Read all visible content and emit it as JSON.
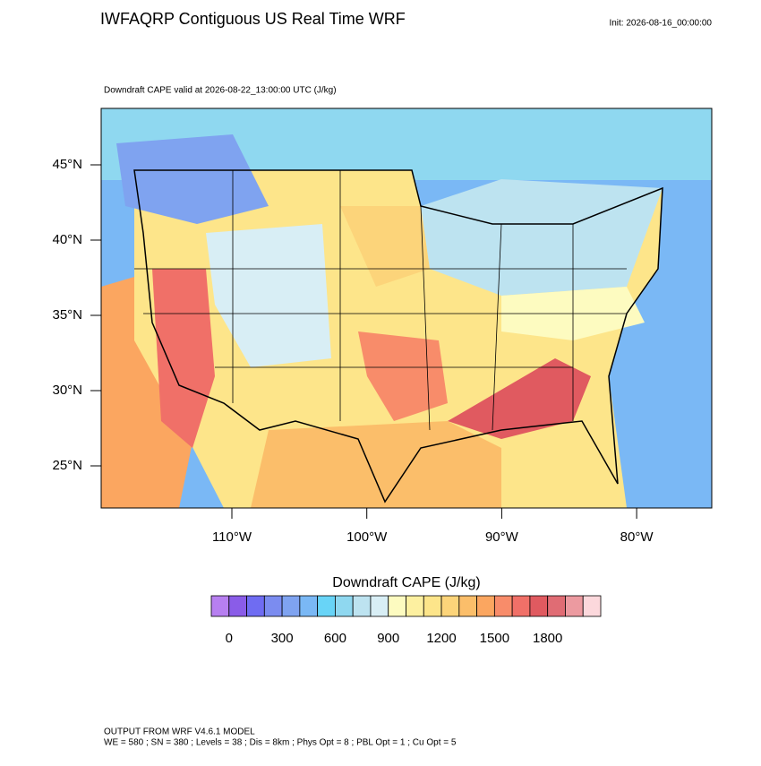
{
  "header": {
    "title": "IWFAQRP Contiguous US Real Time WRF",
    "init": "Init: 2026-08-16_00:00:00"
  },
  "plot": {
    "subtitle": "Downdraft CAPE valid at 2026-08-22_13:00:00 UTC   (J/kg)",
    "lat_labels": [
      "45°N",
      "40°N",
      "35°N",
      "30°N",
      "25°N"
    ],
    "lon_labels": [
      "110°W",
      "100°W",
      "90°W",
      "80°W"
    ]
  },
  "colorbar": {
    "title": "Downdraft CAPE  (J/kg)",
    "labels": [
      "0",
      "300",
      "600",
      "900",
      "1200",
      "1500",
      "1800"
    ],
    "colors": [
      "#b77ff0",
      "#8a5ce8",
      "#6f6cf2",
      "#7b8cf0",
      "#7fa3f0",
      "#7ab8f5",
      "#68d4f7",
      "#8fd8f0",
      "#bde3f0",
      "#d8eef5",
      "#fdfbc0",
      "#fdf0a0",
      "#fde58a",
      "#fcd47a",
      "#fbbe6a",
      "#fba660",
      "#f88c6a",
      "#f07068",
      "#e05a60",
      "#e06c74",
      "#ec9aa0",
      "#fcd8dc"
    ]
  },
  "footer": {
    "line1": "OUTPUT FROM WRF V4.6.1 MODEL",
    "line2": "WE = 580 ; SN = 380 ; Levels = 38 ; Dis = 8km ; Phys Opt = 8 ; PBL Opt = 1 ; Cu Opt = 5"
  }
}
